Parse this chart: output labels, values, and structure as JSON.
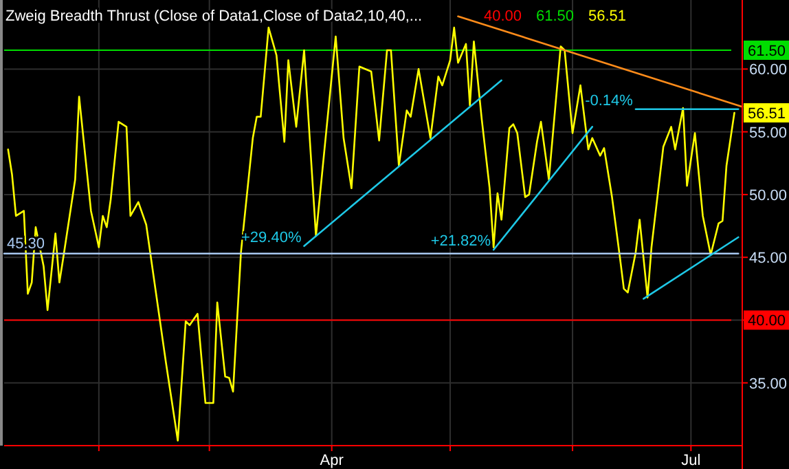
{
  "chart_data": {
    "type": "line",
    "title": "Zweig Breadth Thrust (Close of Data1,Close of Data2,10,40,...",
    "xlim": [
      "--01-08",
      "--07-14"
    ],
    "ylim": [
      30,
      65.5
    ],
    "xticks": [
      {
        "value": "--02-01",
        "label": null
      },
      {
        "value": "--03-01",
        "label": null
      },
      {
        "value": "--04-01",
        "label": "Apr"
      },
      {
        "value": "--05-01",
        "label": null
      },
      {
        "value": "--06-01",
        "label": null
      },
      {
        "value": "--07-01",
        "label": "Jul"
      }
    ],
    "yticks": [
      {
        "value": 35,
        "label": "35.00"
      },
      {
        "value": 40,
        "label": null
      },
      {
        "value": 45,
        "label": "45.00"
      },
      {
        "value": 50,
        "label": "50.00"
      },
      {
        "value": 55,
        "label": "55.00"
      },
      {
        "value": 60,
        "label": "60.00"
      }
    ],
    "grid": true,
    "ref_lines": [
      {
        "axis": "y",
        "value": 40,
        "label": "40.00",
        "color": "#ff0000"
      },
      {
        "axis": "y",
        "value": 61.5,
        "label": "61.50",
        "color": "#00dd00"
      }
    ],
    "series": [
      {
        "color": "#ffff00",
        "x": [
          "--01-09",
          "--01-10",
          "--01-11",
          "--01-13",
          "--01-14",
          "--01-15",
          "--01-16",
          "--01-18",
          "--01-19",
          "--01-21",
          "--01-22",
          "--01-23",
          "--01-26",
          "--01-27",
          "--01-30",
          "--02-01",
          "--02-02",
          "--02-03",
          "--02-04",
          "--02-06",
          "--02-08",
          "--02-09",
          "--02-11",
          "--02-13",
          "--02-16",
          "--02-18",
          "--02-21",
          "--02-23",
          "--02-24",
          "--02-26",
          "--02-28",
          "--03-02",
          "--03-03",
          "--03-05",
          "--03-06",
          "--03-07",
          "--03-09",
          "--03-12",
          "--03-13",
          "--03-14",
          "--03-16",
          "--03-18",
          "--03-20",
          "--03-21",
          "--03-23",
          "--03-25",
          "--03-28",
          "--03-30",
          "--04-02",
          "--04-04",
          "--04-06",
          "--04-08",
          "--04-11",
          "--04-13",
          "--04-15",
          "--04-16",
          "--04-18",
          "--04-20",
          "--04-21",
          "--04-23",
          "--04-26",
          "--04-28",
          "--04-29",
          "--05-01",
          "--05-02",
          "--05-03",
          "--05-05",
          "--05-06",
          "--05-07",
          "--05-09",
          "--05-11",
          "--05-12",
          "--05-13",
          "--05-14",
          "--05-16",
          "--05-17",
          "--05-18",
          "--05-20",
          "--05-21",
          "--05-23",
          "--05-24",
          "--05-26",
          "--05-29",
          "--05-30",
          "--06-01",
          "--06-03",
          "--06-05",
          "--06-06",
          "--06-08",
          "--06-09",
          "--06-11",
          "--06-13",
          "--06-14",
          "--06-15",
          "--06-17",
          "--06-18",
          "--06-20",
          "--06-21",
          "--06-24",
          "--06-26",
          "--06-27",
          "--06-29",
          "--06-30",
          "--07-02",
          "--07-04",
          "--07-06",
          "--07-08",
          "--07-09",
          "--07-10",
          "--07-12"
        ],
        "values": [
          53.6,
          51.6,
          48.3,
          48.7,
          42.1,
          43.0,
          47.4,
          44.3,
          40.8,
          46.9,
          43.0,
          45.0,
          51.2,
          57.8,
          48.7,
          45.8,
          48.3,
          47.4,
          49.6,
          55.8,
          55.4,
          48.3,
          49.4,
          47.6,
          41.0,
          36.6,
          30.4,
          39.9,
          39.6,
          40.5,
          33.4,
          33.4,
          41.4,
          35.5,
          35.4,
          34.3,
          45.4,
          54.5,
          56.2,
          56.2,
          63.3,
          61.1,
          54.2,
          60.7,
          55.4,
          61.5,
          46.7,
          53.1,
          62.6,
          54.5,
          50.5,
          60.2,
          59.8,
          54.3,
          61.5,
          61.5,
          52.3,
          56.7,
          56.2,
          60.0,
          54.5,
          59.4,
          58.7,
          60.7,
          63.3,
          60.5,
          62.0,
          57.1,
          62.2,
          56.0,
          50.5,
          45.8,
          50.1,
          48.0,
          55.3,
          55.6,
          54.9,
          49.8,
          50.0,
          54.2,
          55.8,
          51.2,
          61.8,
          61.5,
          54.9,
          58.7,
          53.6,
          54.5,
          53.1,
          53.7,
          49.8,
          45.0,
          42.5,
          42.2,
          45.4,
          48.0,
          41.8,
          45.8,
          53.8,
          55.4,
          53.6,
          56.9,
          50.7,
          54.9,
          48.3,
          45.2,
          47.7,
          47.9,
          52.3,
          56.51
        ],
        "value_labels": [
          null,
          null,
          null,
          null,
          null,
          null,
          null,
          null,
          null,
          null,
          null,
          null,
          null,
          null,
          null,
          null,
          null,
          null,
          null,
          null,
          null,
          null,
          null,
          null,
          null,
          null,
          null,
          null,
          null,
          null,
          null,
          null,
          null,
          null,
          null,
          null,
          null,
          null,
          null,
          null,
          null,
          null,
          null,
          null,
          null,
          null,
          null,
          null,
          null,
          null,
          null,
          null,
          null,
          null,
          null,
          null,
          null,
          null,
          null,
          null,
          null,
          null,
          null,
          null,
          null,
          null,
          null,
          null,
          null,
          null,
          null,
          null,
          null,
          null,
          null,
          null,
          null,
          null,
          null,
          null,
          null,
          null,
          null,
          null,
          null,
          null,
          null,
          null,
          null,
          null,
          null,
          null,
          null,
          null,
          null,
          null,
          null,
          null,
          null,
          null,
          null,
          null,
          null,
          null,
          null,
          null,
          null,
          null,
          null,
          "56.51"
        ]
      },
      {
        "type": "line",
        "color": "#a8c8f0",
        "x": [
          "--01-08",
          "--07-13"
        ],
        "values": [
          45.3,
          45.3
        ]
      },
      {
        "type": "line",
        "color": "#1ec8e6",
        "x": [
          "--03-25",
          "--05-14"
        ],
        "values": [
          45.9,
          59.1
        ]
      },
      {
        "type": "line",
        "color": "#1ec8e6",
        "x": [
          "--05-12",
          "--06-06"
        ],
        "values": [
          45.6,
          55.4
        ]
      },
      {
        "type": "line",
        "color": "#1ec8e6",
        "x": [
          "--06-17",
          "--07-13"
        ],
        "values": [
          56.8,
          56.8
        ]
      },
      {
        "type": "line",
        "color": "#1ec8e6",
        "x": [
          "--06-19",
          "--07-13"
        ],
        "values": [
          41.7,
          46.6
        ]
      },
      {
        "type": "line",
        "color": "#ff8c1a",
        "x": [
          "--05-03",
          "--07-14"
        ],
        "values": [
          64.2,
          57.0
        ]
      }
    ],
    "annotations": [
      {
        "text": "45.30",
        "x": "--01-08",
        "y": 45.3
      },
      {
        "text": "+29.40%",
        "x": "--03-25",
        "y": 45.9
      },
      {
        "text": "+21.82%",
        "x": "--05-12",
        "y": 45.6
      },
      {
        "text": "-0.14%",
        "x": "--06-17",
        "y": 56.8
      }
    ]
  }
}
